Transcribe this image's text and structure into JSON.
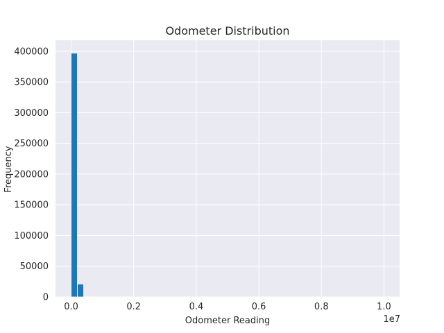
{
  "chart_data": {
    "type": "bar",
    "title": "Odometer Distribution",
    "xlabel": "Odometer Reading",
    "ylabel": "Frequency",
    "x_offset_label": "1e7",
    "xlim": [
      -500000,
      10500000
    ],
    "ylim": [
      0,
      418000
    ],
    "xticks": [
      0,
      2000000,
      4000000,
      6000000,
      8000000,
      10000000
    ],
    "xtick_labels": [
      "0.0",
      "0.2",
      "0.4",
      "0.6",
      "0.8",
      "1.0"
    ],
    "yticks": [
      0,
      50000,
      100000,
      150000,
      200000,
      250000,
      300000,
      350000,
      400000
    ],
    "ytick_labels": [
      "0",
      "50000",
      "100000",
      "150000",
      "200000",
      "250000",
      "300000",
      "350000",
      "400000"
    ],
    "bins": [
      {
        "x0": 0,
        "x1": 200000,
        "value": 397000
      },
      {
        "x0": 200000,
        "x1": 400000,
        "value": 21000
      }
    ],
    "grid": true,
    "colors": {
      "bar": "#1f77b4",
      "plot_bg": "#eaeaf2",
      "grid": "#ffffff"
    }
  }
}
